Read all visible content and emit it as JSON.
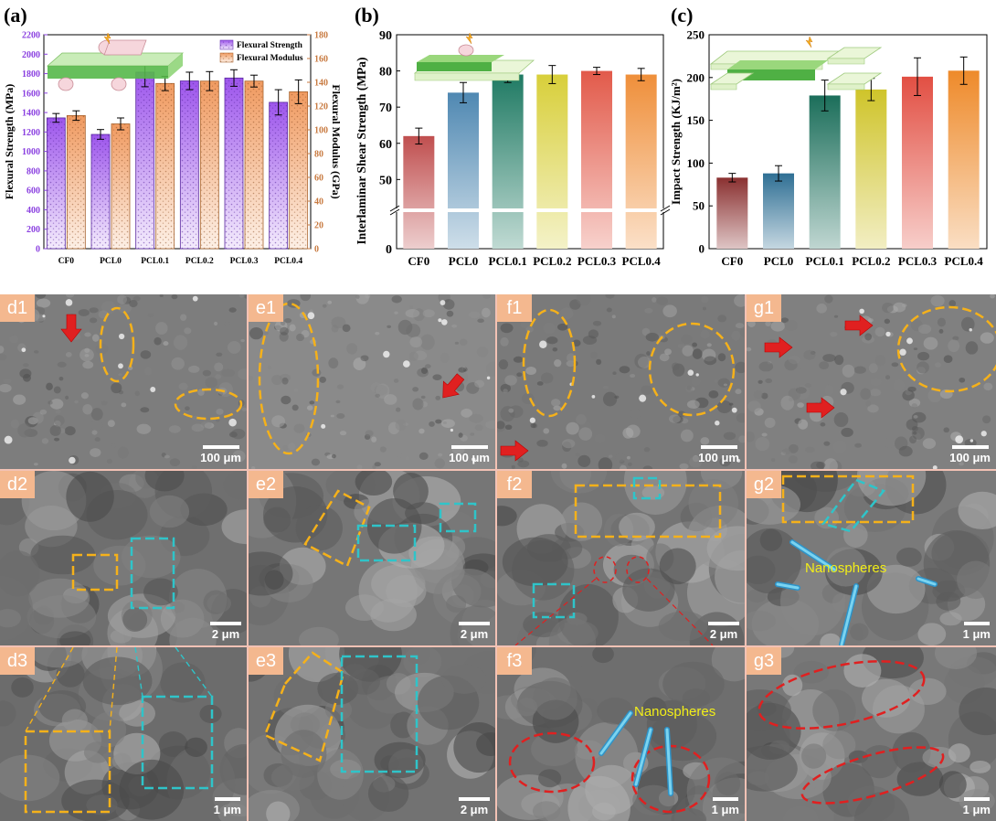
{
  "chart_data": [
    {
      "id": "a",
      "panel_label": "(a)",
      "type": "bar",
      "categories": [
        "CF0",
        "PCL0",
        "PCL0.1",
        "PCL0.2",
        "PCL0.3",
        "PCL0.4"
      ],
      "series": [
        {
          "name": "Flexural Strength",
          "axis": "left",
          "values": [
            1345,
            1175,
            1815,
            1725,
            1755,
            1505
          ],
          "errors": [
            45,
            50,
            150,
            90,
            85,
            130
          ]
        },
        {
          "name": "Flexural Modulus",
          "axis": "right",
          "values": [
            112,
            105,
            139,
            141,
            141,
            132
          ],
          "errors": [
            4,
            5,
            6,
            8,
            5,
            10
          ]
        }
      ],
      "ylabel": "Flexural Strength (MPa)",
      "ylabel_right": "Flexural Modulus (GPa)",
      "ylim": [
        0,
        2200
      ],
      "ylim_right": [
        0,
        180
      ],
      "yticks": [
        0,
        200,
        400,
        600,
        800,
        1000,
        1200,
        1400,
        1600,
        1800,
        2000,
        2200
      ],
      "yticks_right": [
        0,
        20,
        40,
        60,
        80,
        100,
        120,
        140,
        160,
        180
      ],
      "legend": "top-right",
      "colors": {
        "left": "#8a3fe0",
        "right": "#c87a40",
        "bar_left": "#a765ee",
        "bar_right": "#f2a977"
      }
    },
    {
      "id": "b",
      "panel_label": "(b)",
      "type": "bar",
      "categories": [
        "CF0",
        "PCL0",
        "PCL0.1",
        "PCL0.2",
        "PCL0.3",
        "PCL0.4"
      ],
      "values": [
        62,
        74,
        79,
        79,
        80,
        79
      ],
      "errors": [
        2.2,
        2.8,
        2.2,
        2.5,
        1.0,
        1.7
      ],
      "ylabel": "Interlaminar Shear Strength (MPa)",
      "axis_break": [
        10,
        42
      ],
      "yticks": [
        0,
        50,
        60,
        70,
        80,
        90
      ],
      "ylim": [
        0,
        90
      ],
      "colors": [
        "#c04f4f",
        "#4f88b2",
        "#1f7a63",
        "#d8cf3a",
        "#e25a4a",
        "#ef8f3a"
      ]
    },
    {
      "id": "c",
      "panel_label": "(c)",
      "type": "bar",
      "categories": [
        "CF0",
        "PCL0",
        "PCL0.1",
        "PCL0.2",
        "PCL0.3",
        "PCL0.4"
      ],
      "values": [
        83,
        88,
        179,
        186,
        201,
        208
      ],
      "errors": [
        5,
        9,
        18,
        13,
        22,
        16
      ],
      "ylabel": "Impact Strength (KJ/m²)",
      "ylim": [
        0,
        250
      ],
      "yticks": [
        0,
        50,
        100,
        150,
        200,
        250
      ],
      "colors": [
        "#8a3030",
        "#2f6f94",
        "#1b6e5a",
        "#cfc42a",
        "#e24f43",
        "#ee8a2a"
      ]
    }
  ],
  "sem_panels": [
    {
      "id": "d1",
      "label": "d1",
      "scale": "100 μm"
    },
    {
      "id": "e1",
      "label": "e1",
      "scale": "100 μm"
    },
    {
      "id": "f1",
      "label": "f1",
      "scale": "100 μm"
    },
    {
      "id": "g1",
      "label": "g1",
      "scale": "100 μm"
    },
    {
      "id": "d2",
      "label": "d2",
      "scale": "2 μm"
    },
    {
      "id": "e2",
      "label": "e2",
      "scale": "2 μm"
    },
    {
      "id": "f2",
      "label": "f2",
      "scale": "2 μm"
    },
    {
      "id": "g2",
      "label": "g2",
      "scale": "1 μm",
      "annotation": "Nanospheres"
    },
    {
      "id": "d3",
      "label": "d3",
      "scale": "1 μm"
    },
    {
      "id": "e3",
      "label": "e3",
      "scale": "2 μm"
    },
    {
      "id": "f3",
      "label": "f3",
      "scale": "1 μm",
      "annotation": "Nanospheres"
    },
    {
      "id": "g3",
      "label": "g3",
      "scale": "1 μm"
    }
  ]
}
